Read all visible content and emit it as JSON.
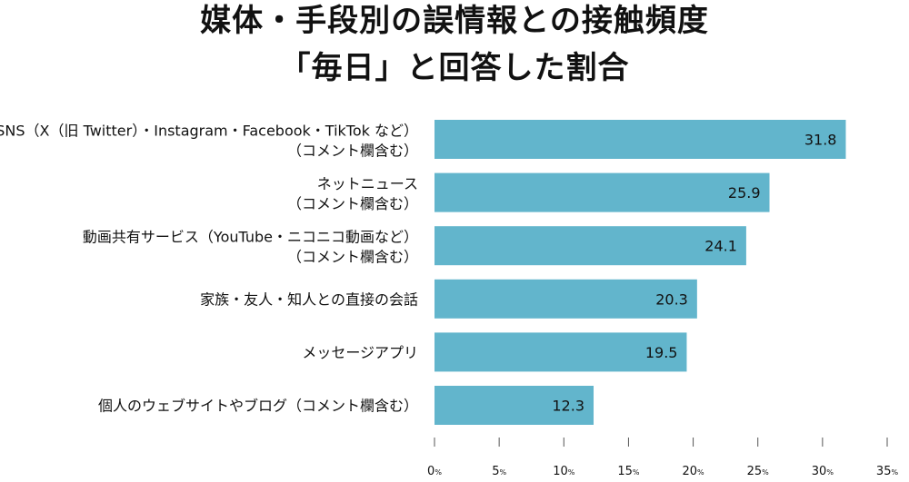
{
  "chart_data": {
    "type": "bar",
    "orientation": "horizontal",
    "title_lines": [
      "媒体・手段別の誤情報との接触頻度",
      "「毎日」と回答した割合"
    ],
    "categories": [
      [
        "SNS（X（旧 Twitter）・Instagram・Facebook・TikTok など）",
        "（コメント欄含む）"
      ],
      [
        "ネットニュース",
        "（コメント欄含む）"
      ],
      [
        "動画共有サービス（YouTube・ニコニコ動画など）",
        "（コメント欄含む）"
      ],
      [
        "家族・友人・知人との直接の会話"
      ],
      [
        "メッセージアプリ"
      ],
      [
        "個人のウェブサイトやブログ（コメント欄含む）"
      ]
    ],
    "values": [
      31.8,
      25.9,
      24.1,
      20.3,
      19.5,
      12.3
    ],
    "value_labels": [
      "31.8",
      "25.9",
      "24.1",
      "20.3",
      "19.5",
      "12.3"
    ],
    "xlim": [
      0,
      35
    ],
    "ticks": [
      0,
      5,
      10,
      15,
      20,
      25,
      30,
      35
    ],
    "tick_labels": [
      "0",
      "5",
      "10",
      "15",
      "20",
      "25",
      "30",
      "35"
    ],
    "tick_unit": "%",
    "bar_color": "#62b5cc",
    "grid": false
  }
}
